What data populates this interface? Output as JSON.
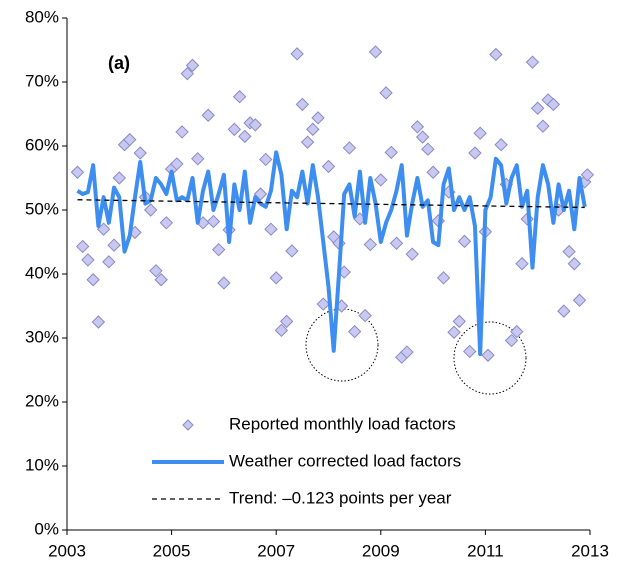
{
  "chart_data": {
    "type": "line",
    "annotation": "(a)",
    "xlim": [
      2003,
      2013
    ],
    "xticks": [
      2003,
      2005,
      2007,
      2009,
      2011,
      2013
    ],
    "ylim": [
      0,
      80
    ],
    "yticks": [
      {
        "value": 0,
        "label": "0%"
      },
      {
        "value": 10,
        "label": "10%"
      },
      {
        "value": 20,
        "label": "20%"
      },
      {
        "value": 30,
        "label": "30%"
      },
      {
        "value": 40,
        "label": "40%"
      },
      {
        "value": 50,
        "label": "50%"
      },
      {
        "value": 60,
        "label": "60%"
      },
      {
        "value": 70,
        "label": "70%"
      },
      {
        "value": 80,
        "label": "80%"
      }
    ],
    "legend": "bottom",
    "series": [
      {
        "name": "Reported monthly load factors",
        "type": "scatter",
        "color": "#c8c8f0",
        "stroke": "#8a8ac8",
        "x": [
          2003.2,
          2003.3,
          2003.4,
          2003.5,
          2003.6,
          2003.7,
          2003.8,
          2003.9,
          2004.0,
          2004.1,
          2004.2,
          2004.3,
          2004.4,
          2004.5,
          2004.6,
          2004.7,
          2004.8,
          2004.9,
          2005.0,
          2005.1,
          2005.2,
          2005.3,
          2005.4,
          2005.5,
          2005.6,
          2005.7,
          2005.8,
          2005.9,
          2006.0,
          2006.1,
          2006.2,
          2006.3,
          2006.4,
          2006.5,
          2006.6,
          2006.7,
          2006.8,
          2006.9,
          2007.0,
          2007.1,
          2007.2,
          2007.3,
          2007.4,
          2007.5,
          2007.6,
          2007.7,
          2007.8,
          2007.9,
          2008.0,
          2008.1,
          2008.2,
          2008.25,
          2008.3,
          2008.4,
          2008.5,
          2008.6,
          2008.7,
          2008.8,
          2008.9,
          2009.0,
          2009.1,
          2009.2,
          2009.3,
          2009.4,
          2009.5,
          2009.6,
          2009.7,
          2009.8,
          2009.9,
          2010.0,
          2010.1,
          2010.2,
          2010.3,
          2010.4,
          2010.5,
          2010.6,
          2010.7,
          2010.8,
          2010.9,
          2011.0,
          2011.05,
          2011.2,
          2011.3,
          2011.4,
          2011.5,
          2011.6,
          2011.7,
          2011.8,
          2011.9,
          2012.0,
          2012.1,
          2012.2,
          2012.3,
          2012.4,
          2012.5,
          2012.6,
          2012.7,
          2012.8,
          2012.9,
          2012.95
        ],
        "values": [
          55.9,
          44.3,
          42.2,
          39.1,
          32.5,
          47.0,
          41.9,
          44.5,
          55.0,
          60.2,
          61.0,
          46.5,
          58.9,
          52.0,
          50.0,
          40.5,
          39.1,
          48.0,
          56.4,
          57.2,
          62.2,
          71.3,
          72.6,
          58.0,
          48.0,
          64.8,
          48.2,
          43.8,
          38.6,
          46.9,
          62.6,
          67.7,
          61.5,
          63.6,
          63.3,
          52.5,
          57.9,
          47.0,
          39.4,
          31.2,
          32.6,
          43.6,
          74.4,
          66.5,
          60.6,
          62.6,
          64.4,
          35.3,
          56.8,
          45.8,
          44.8,
          35.0,
          40.3,
          59.7,
          31.0,
          48.6,
          33.5,
          44.6,
          74.7,
          54.7,
          68.3,
          59.0,
          44.8,
          27.0,
          27.8,
          43.1,
          63.0,
          61.4,
          59.5,
          55.9,
          48.3,
          39.4,
          52.8,
          30.9,
          32.6,
          45.1,
          27.9,
          58.9,
          62.0,
          46.6,
          27.3,
          74.3,
          60.2,
          54.0,
          29.6,
          31.0,
          41.6,
          48.6,
          73.1,
          65.9,
          63.1,
          67.2,
          66.5,
          50.0,
          34.2,
          43.5,
          41.6,
          35.9,
          54.4,
          55.5
        ]
      },
      {
        "name": "Weather corrected load factors",
        "type": "line",
        "color": "#3d8ef0",
        "x": [
          2003.2,
          2003.3,
          2003.4,
          2003.5,
          2003.6,
          2003.7,
          2003.8,
          2003.9,
          2004.0,
          2004.1,
          2004.2,
          2004.3,
          2004.4,
          2004.5,
          2004.6,
          2004.7,
          2004.8,
          2004.9,
          2005.0,
          2005.1,
          2005.2,
          2005.3,
          2005.4,
          2005.5,
          2005.6,
          2005.7,
          2005.8,
          2005.9,
          2006.0,
          2006.1,
          2006.2,
          2006.3,
          2006.4,
          2006.5,
          2006.6,
          2006.7,
          2006.8,
          2006.9,
          2007.0,
          2007.1,
          2007.2,
          2007.3,
          2007.4,
          2007.5,
          2007.6,
          2007.7,
          2007.8,
          2007.9,
          2008.0,
          2008.1,
          2008.2,
          2008.3,
          2008.4,
          2008.5,
          2008.6,
          2008.7,
          2008.8,
          2008.9,
          2009.0,
          2009.1,
          2009.2,
          2009.3,
          2009.4,
          2009.5,
          2009.6,
          2009.7,
          2009.8,
          2009.9,
          2010.0,
          2010.1,
          2010.2,
          2010.3,
          2010.4,
          2010.5,
          2010.6,
          2010.7,
          2010.8,
          2010.9,
          2011.0,
          2011.1,
          2011.2,
          2011.3,
          2011.4,
          2011.5,
          2011.6,
          2011.7,
          2011.8,
          2011.9,
          2012.0,
          2012.1,
          2012.2,
          2012.3,
          2012.4,
          2012.5,
          2012.6,
          2012.7,
          2012.8,
          2012.9
        ],
        "values": [
          53,
          52.5,
          52.8,
          57,
          47.5,
          52,
          48,
          53.5,
          52,
          43.5,
          46,
          52,
          57.5,
          51,
          51.5,
          55,
          54,
          52.5,
          56,
          51.5,
          52,
          51.5,
          55,
          48,
          53,
          56,
          50,
          52.5,
          55.5,
          45,
          54,
          50,
          56,
          48,
          52,
          51,
          50.5,
          53,
          59,
          55.5,
          47,
          53,
          52,
          56,
          51,
          57,
          52,
          45,
          38,
          28,
          40,
          52.5,
          54,
          49,
          56,
          48,
          55,
          51,
          45,
          48,
          50,
          53,
          57,
          46,
          51,
          55,
          50.5,
          51.5,
          45,
          44.5,
          54,
          56.5,
          50,
          52,
          50,
          52,
          47.5,
          27.5,
          50,
          52,
          58,
          57,
          51,
          55,
          57,
          50.5,
          53,
          41,
          52,
          57,
          54,
          48,
          54,
          50,
          53,
          47,
          55,
          50.5
        ]
      },
      {
        "name": "Trend: –0.123 points per year",
        "type": "line",
        "dash": true,
        "color": "#000000",
        "x": [
          2003.2,
          2012.9
        ],
        "values": [
          51.6,
          50.4
        ]
      }
    ]
  }
}
